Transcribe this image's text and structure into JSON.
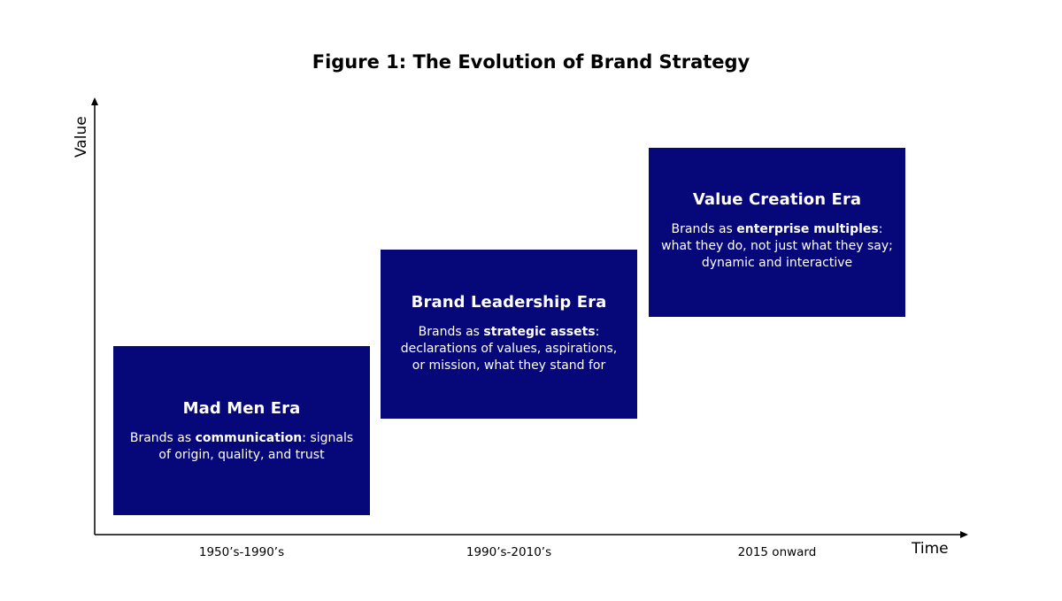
{
  "title": "Figure 1: The Evolution of Brand Strategy",
  "axes": {
    "y_label": "Value",
    "x_label": "Time"
  },
  "eras": [
    {
      "name": "Mad Men Era",
      "period": "1950’s-1990’s",
      "desc_prefix": "Brands as ",
      "desc_bold": "communication",
      "desc_suffix": ": signals of origin, quality, and trust"
    },
    {
      "name": "Brand Leadership Era",
      "period": "1990’s-2010’s",
      "desc_prefix": "Brands as ",
      "desc_bold": "strategic assets",
      "desc_suffix": ": declarations of values, aspirations, or mission, what they stand for"
    },
    {
      "name": "Value Creation Era",
      "period": "2015 onward",
      "desc_prefix": "Brands as ",
      "desc_bold": "enterprise multiples",
      "desc_suffix": ": what they do, not just what they say; dynamic and interactive"
    }
  ],
  "colors": {
    "box": "#06087a",
    "box_text": "#ffffff",
    "axis": "#000000"
  }
}
